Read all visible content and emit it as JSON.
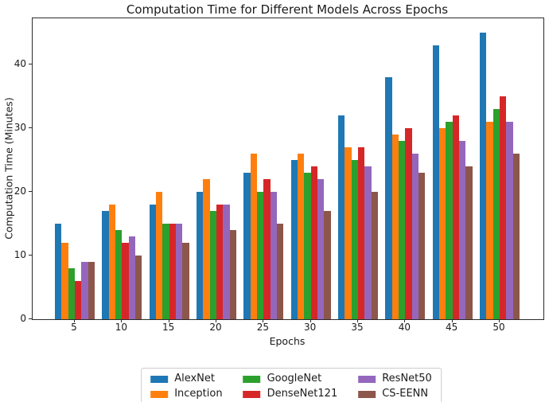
{
  "title": "Computation Time for Different Models Across Epochs",
  "chart_data": {
    "type": "bar",
    "title": "Computation Time for Different Models Across Epochs",
    "xlabel": "Epochs",
    "ylabel": "Computation Time (Minutes)",
    "categories": [
      5,
      10,
      15,
      20,
      25,
      30,
      35,
      40,
      45,
      50
    ],
    "series": [
      {
        "name": "AlexNet",
        "color": "#1f77b4",
        "values": [
          15,
          17,
          18,
          20,
          23,
          25,
          32,
          38,
          43,
          45
        ]
      },
      {
        "name": "Inception",
        "color": "#ff7f0e",
        "values": [
          12,
          18,
          20,
          22,
          26,
          26,
          27,
          29,
          30,
          31
        ]
      },
      {
        "name": "GoogleNet",
        "color": "#2ca02c",
        "values": [
          8,
          14,
          15,
          17,
          20,
          23,
          25,
          28,
          31,
          33
        ]
      },
      {
        "name": "DenseNet121",
        "color": "#d62728",
        "values": [
          6,
          12,
          15,
          18,
          22,
          24,
          27,
          30,
          32,
          35
        ]
      },
      {
        "name": "ResNet50",
        "color": "#9467bd",
        "values": [
          9,
          13,
          15,
          18,
          20,
          22,
          24,
          26,
          28,
          31
        ]
      },
      {
        "name": "CS-EENN",
        "color": "#8c564b",
        "values": [
          9,
          10,
          12,
          14,
          15,
          17,
          20,
          23,
          24,
          26
        ]
      }
    ],
    "yticks": [
      0,
      10,
      20,
      30,
      40
    ],
    "ylim": [
      0,
      47.25
    ],
    "grid": false,
    "legend": {
      "position": "bottom-center",
      "columns": 3,
      "rows": 2
    }
  },
  "colors": {
    "spine": "#2b2b2b",
    "background": "#ffffff",
    "legend_border": "#cccccc",
    "text": "#1a1a1a"
  }
}
